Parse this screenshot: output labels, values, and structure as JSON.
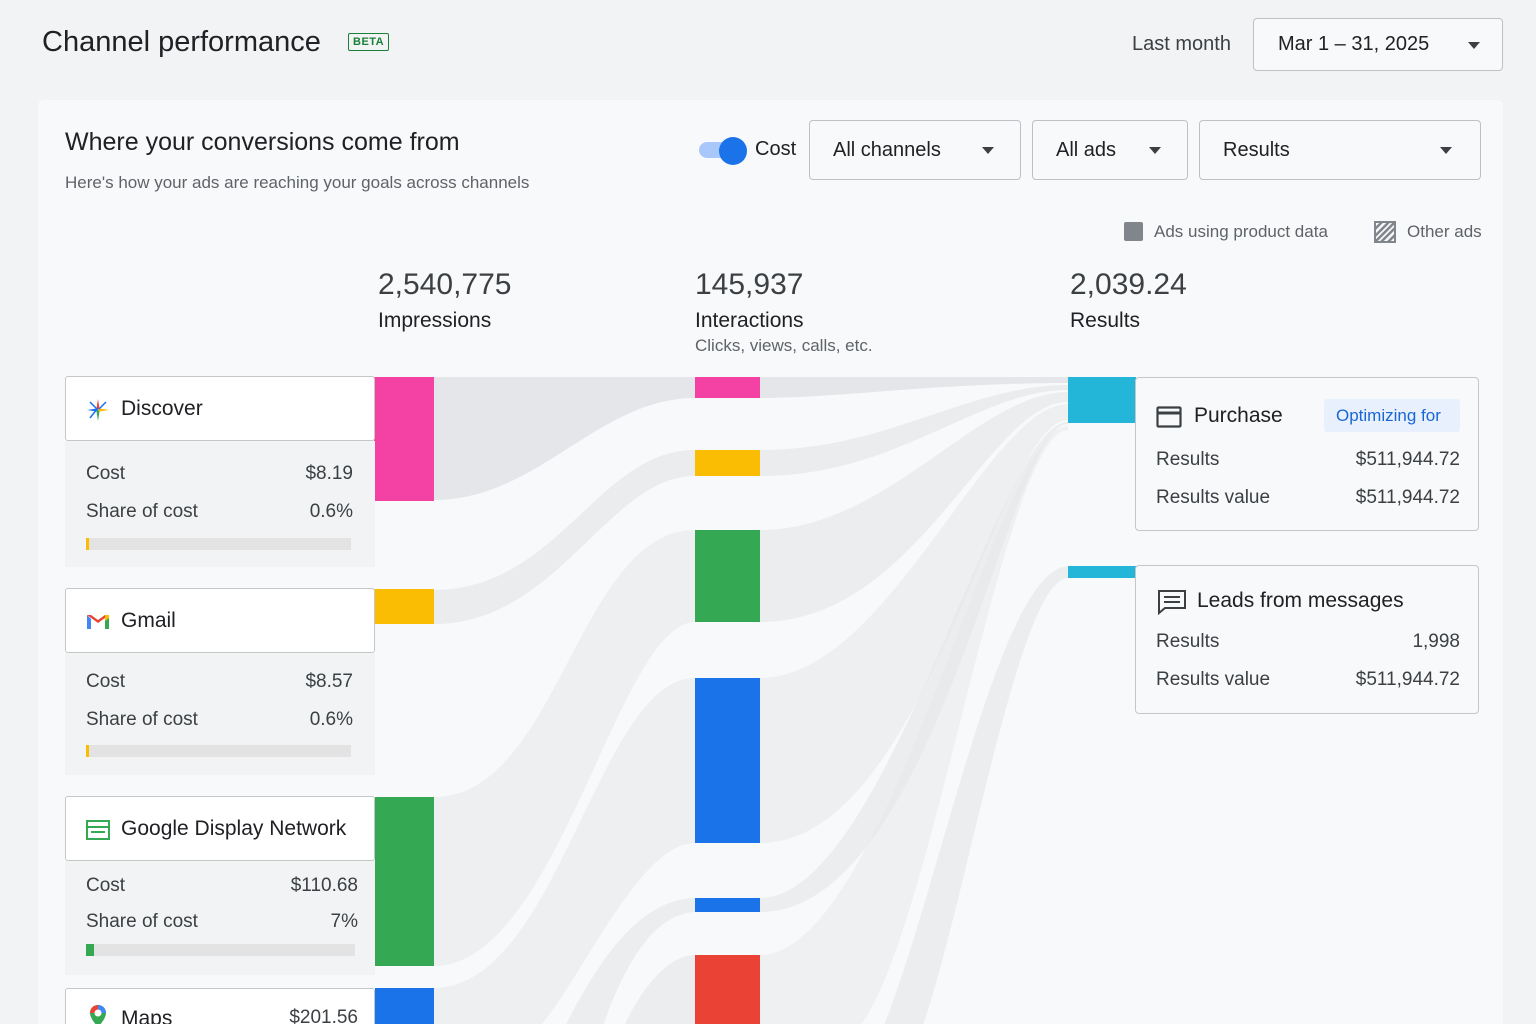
{
  "header": {
    "title": "Channel performance",
    "badge": "BETA",
    "range_label": "Last month",
    "date_range": "Mar 1 – 31, 2025"
  },
  "card": {
    "title": "Where your conversions come from",
    "subtitle": "Here's how your ads are reaching your goals across channels",
    "cost_toggle_label": "Cost",
    "cost_toggle_on": true,
    "filters": {
      "channels": "All channels",
      "ads": "All ads",
      "metric": "Results"
    },
    "legend": {
      "product_data": "Ads using product data",
      "other_ads": "Other ads"
    }
  },
  "metrics": {
    "impressions": {
      "value": "2,540,775",
      "label": "Impressions"
    },
    "interactions": {
      "value": "145,937",
      "label": "Interactions",
      "sublabel": "Clicks, views, calls, etc."
    },
    "results": {
      "value": "2,039.24",
      "label": "Results"
    }
  },
  "channels": [
    {
      "name": "Discover",
      "icon": "discover-sparkle-icon",
      "color": "#f442a4",
      "cost_label": "Cost",
      "cost": "$8.19",
      "share_label": "Share of cost",
      "share": "0.6%",
      "share_fraction": 0.006,
      "bar_color": "#fbbc04"
    },
    {
      "name": "Gmail",
      "icon": "gmail-icon",
      "color": "#fbbc04",
      "cost_label": "Cost",
      "cost": "$8.57",
      "share_label": "Share of cost",
      "share": "0.6%",
      "share_fraction": 0.006,
      "bar_color": "#fbbc04"
    },
    {
      "name": "Google Display Network",
      "icon": "display-network-icon",
      "color": "#34a853",
      "cost_label": "Cost",
      "cost": "$110.68",
      "share_label": "Share of cost",
      "share": "7%",
      "share_fraction": 0.07,
      "bar_color": "#34a853"
    },
    {
      "name": "Maps",
      "icon": "maps-pin-icon",
      "color": "#1a73e8",
      "cost": "$201.56"
    }
  ],
  "interaction_colors": [
    "#f442a4",
    "#fbbc04",
    "#34a853",
    "#1a73e8",
    "#1a73e8",
    "#ea4335"
  ],
  "results": [
    {
      "title": "Purchase",
      "icon": "credit-card-icon",
      "badge": "Optimizing for",
      "rows": [
        {
          "label": "Results",
          "value": "$511,944.72"
        },
        {
          "label": "Results value",
          "value": "$511,944.72"
        }
      ]
    },
    {
      "title": "Leads from messages",
      "icon": "message-icon",
      "rows": [
        {
          "label": "Results",
          "value": "1,998"
        },
        {
          "label": "Results value",
          "value": "$511,944.72"
        }
      ]
    }
  ],
  "result_color": "#24b6d8"
}
